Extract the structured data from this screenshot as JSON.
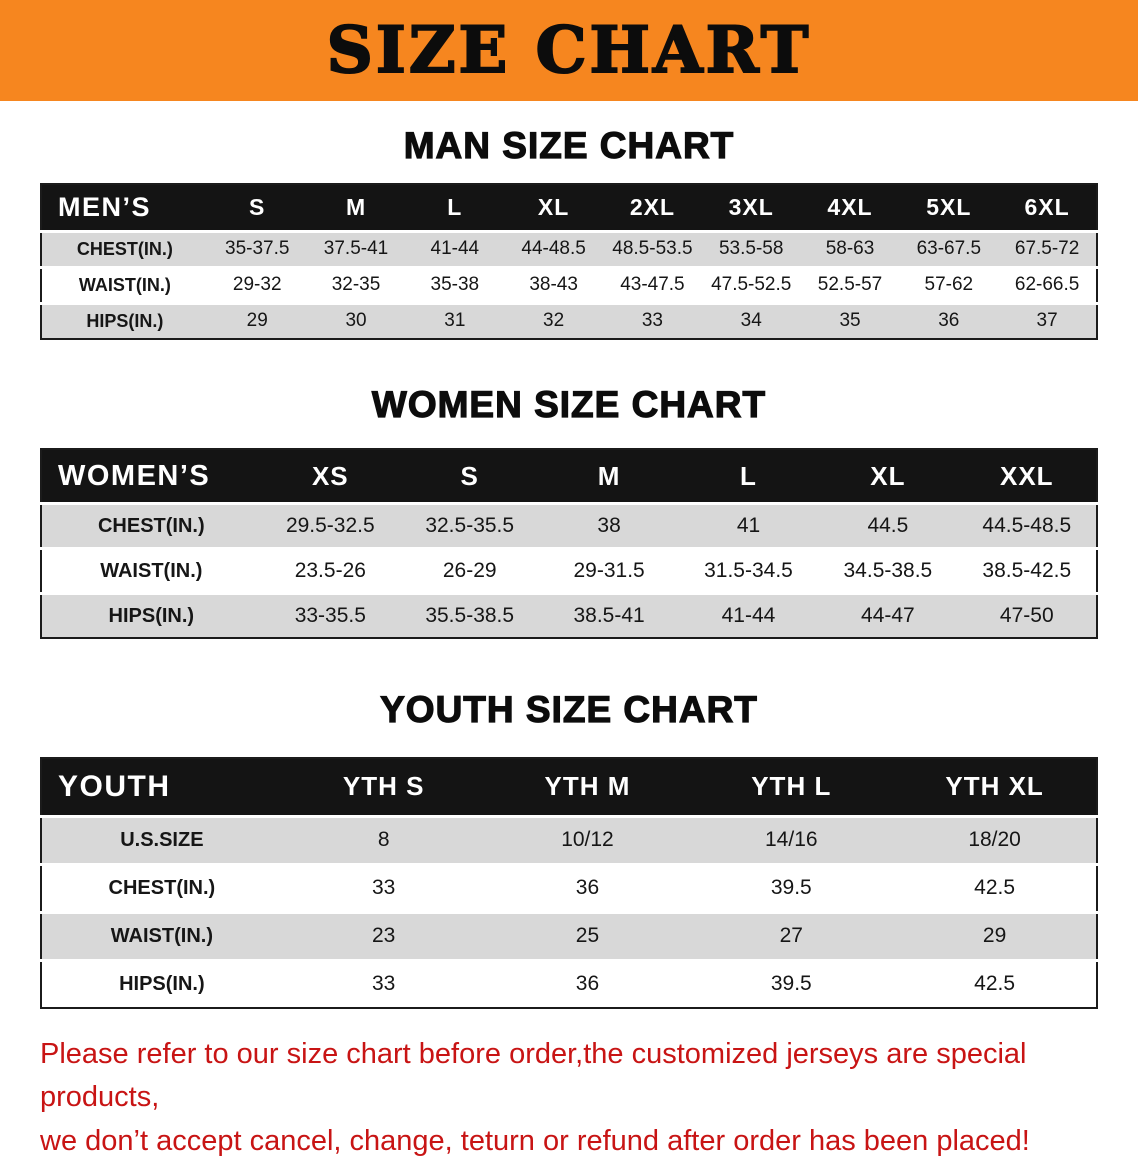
{
  "colors": {
    "banner_orange": "#f6861f",
    "header_black": "#141414",
    "row_gray": "#d8d8d8",
    "disclaimer_red": "#c81414"
  },
  "banner": {
    "title": "SIZE CHART"
  },
  "sections": [
    {
      "heading": "MAN SIZE CHART",
      "table": {
        "header_label": "MEN’S",
        "columns": [
          "S",
          "M",
          "L",
          "XL",
          "2XL",
          "3XL",
          "4XL",
          "5XL",
          "6XL"
        ],
        "rows": [
          {
            "label": "CHEST(IN.)",
            "values": [
              "35-37.5",
              "37.5-41",
              "41-44",
              "44-48.5",
              "48.5-53.5",
              "53.5-58",
              "58-63",
              "63-67.5",
              "67.5-72"
            ]
          },
          {
            "label": "WAIST(IN.)",
            "values": [
              "29-32",
              "32-35",
              "35-38",
              "38-43",
              "43-47.5",
              "47.5-52.5",
              "52.5-57",
              "57-62",
              "62-66.5"
            ]
          },
          {
            "label": "HIPS(IN.)",
            "values": [
              "29",
              "30",
              "31",
              "32",
              "33",
              "34",
              "35",
              "36",
              "37"
            ]
          }
        ]
      }
    },
    {
      "heading": "WOMEN SIZE CHART",
      "table": {
        "header_label": "WOMEN’S",
        "columns": [
          "XS",
          "S",
          "M",
          "L",
          "XL",
          "XXL"
        ],
        "rows": [
          {
            "label": "CHEST(IN.)",
            "values": [
              "29.5-32.5",
              "32.5-35.5",
              "38",
              "41",
              "44.5",
              "44.5-48.5"
            ]
          },
          {
            "label": "WAIST(IN.)",
            "values": [
              "23.5-26",
              "26-29",
              "29-31.5",
              "31.5-34.5",
              "34.5-38.5",
              "38.5-42.5"
            ]
          },
          {
            "label": "HIPS(IN.)",
            "values": [
              "33-35.5",
              "35.5-38.5",
              "38.5-41",
              "41-44",
              "44-47",
              "47-50"
            ]
          }
        ]
      }
    },
    {
      "heading": "YOUTH SIZE CHART",
      "table": {
        "header_label": "YOUTH",
        "columns": [
          "YTH S",
          "YTH M",
          "YTH L",
          "YTH XL"
        ],
        "rows": [
          {
            "label": "U.S.SIZE",
            "values": [
              "8",
              "10/12",
              "14/16",
              "18/20"
            ]
          },
          {
            "label": "CHEST(IN.)",
            "values": [
              "33",
              "36",
              "39.5",
              "42.5"
            ]
          },
          {
            "label": "WAIST(IN.)",
            "values": [
              "23",
              "25",
              "27",
              "29"
            ]
          },
          {
            "label": "HIPS(IN.)",
            "values": [
              "33",
              "36",
              "39.5",
              "42.5"
            ]
          }
        ]
      }
    }
  ],
  "disclaimer": {
    "line1": "Please refer to our size chart before order,the customized jerseys are special products,",
    "line2": "we don’t accept cancel, change, teturn or refund after order has been placed!"
  }
}
